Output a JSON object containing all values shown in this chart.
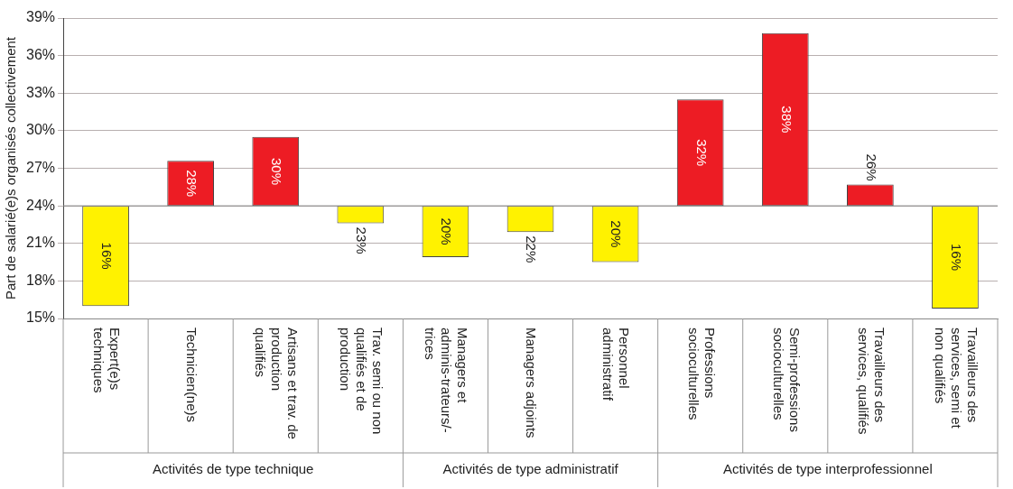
{
  "chart_data": {
    "type": "bar",
    "ylabel": "Part de salarié(e)s organisés collectivement",
    "categories": [
      "Expert(e)s techniques",
      "Technicien(ne)s",
      "Artisans et trav. de production qualifiés",
      "Trav. semi ou non qualifiés et de production",
      "Managers et adminis-trateurs/-trices",
      "Managers adjoints",
      "Personnel administratif",
      "Professions socioculturelles",
      "Semi-professions socioculturelles",
      "Travailleurs des services, qualifiés",
      "Travailleurs des services, semi et non qualifiés"
    ],
    "base": [
      24,
      24,
      24,
      24,
      24,
      24,
      24,
      24,
      24,
      24,
      24
    ],
    "values": [
      -8.0,
      3.6,
      5.5,
      -1.4,
      -4.1,
      -2.1,
      -4.5,
      8.5,
      13.8,
      1.7,
      -8.2
    ],
    "colors": [
      "#fff200",
      "#ed1c24",
      "#ed1c24",
      "#fff200",
      "#fff200",
      "#fff200",
      "#fff200",
      "#ed1c24",
      "#ed1c24",
      "#ed1c24",
      "#fff200"
    ],
    "value_labels": [
      "16%",
      "28%",
      "30%",
      "23%",
      "20%",
      "22%",
      "20%",
      "32%",
      "38%",
      "26%",
      "16%"
    ],
    "annotations": [
      "Activités de type technique",
      "Activités de type administratif",
      "Activités de type interprofessionnel"
    ],
    "ylim": [
      15,
      39
    ],
    "yticks": [
      {
        "value": 15,
        "label": "15%"
      },
      {
        "value": 18,
        "label": "18%"
      },
      {
        "value": 21,
        "label": "21%"
      },
      {
        "value": 24,
        "label": "24%"
      },
      {
        "value": 27,
        "label": "27%"
      },
      {
        "value": 30,
        "label": "30%"
      },
      {
        "value": 33,
        "label": "33%"
      },
      {
        "value": 36,
        "label": "36%"
      },
      {
        "value": 39,
        "label": "39%"
      }
    ],
    "ref_lines": [
      {
        "axis": "y",
        "value": 24,
        "color": "#888888"
      }
    ],
    "grid": "y",
    "legend": false
  }
}
